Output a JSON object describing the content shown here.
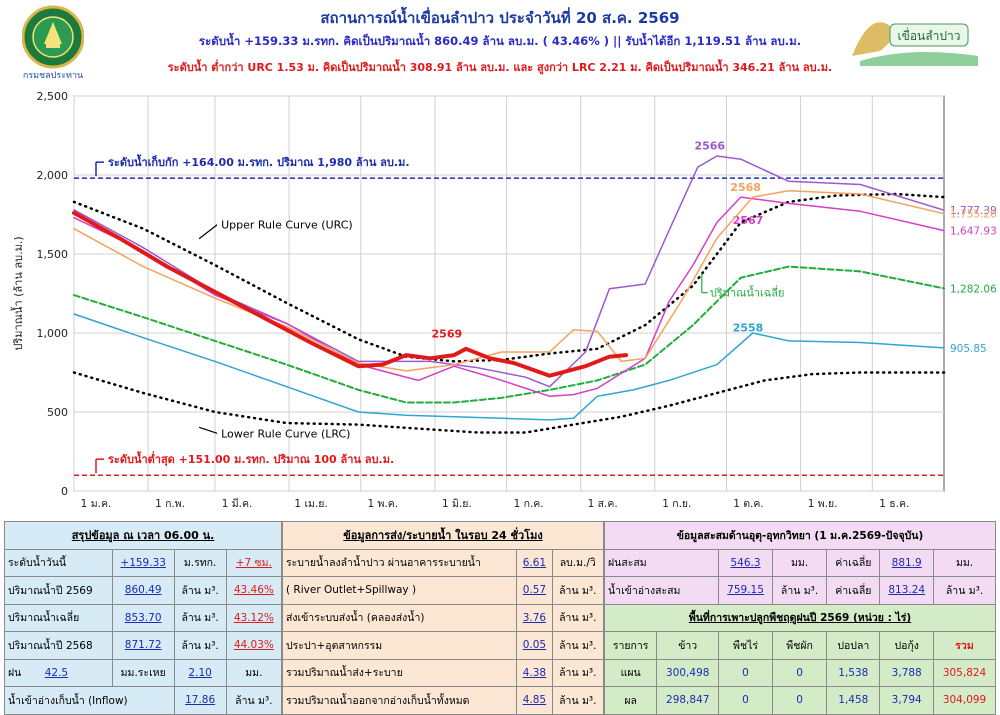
{
  "header": {
    "title": "สถานการณ์น้ำเขื่อนลำปาว ประจำวันที่ 20 ส.ค. 2569",
    "line2": "ระดับน้ำ +159.33 ม.รทก.  คิดเป็นปริมาณน้ำ 860.49 ล้าน ลบ.ม. ( 43.46% )  || รับน้ำได้อีก 1,119.51 ล้าน ลบ.ม.",
    "line3": "ระดับน้ำ ต่ำกว่า URC 1.53 ม. คิดเป็นปริมาณน้ำ 308.91 ล้าน ลบ.ม. และ สูงกว่า LRC 2.21 ม. คิดเป็นปริมาณน้ำ 346.21 ล้าน ลบ.ม.",
    "logo_left_text": "กรมชลประทาน",
    "logo_right_text": "เขื่อนลำปาว"
  },
  "chart_data": {
    "type": "line",
    "ylabel": "ปริมาณน้ำ (ล้าน ลบ.ม.)",
    "ylim": [
      0,
      2500
    ],
    "yticks": [
      "0",
      "500",
      "1,000",
      "1,500",
      "2,000",
      "2,500"
    ],
    "month_labels": [
      "1 ม.ค.",
      "1 ก.พ.",
      "1 มี.ค.",
      "1 เม.ย.",
      "1 พ.ค.",
      "1 มิ.ย.",
      "1 ก.ค.",
      "1 ส.ค.",
      "1 ก.ย.",
      "1 ต.ค.",
      "1 พ.ย.",
      "1 ธ.ค."
    ],
    "x_unit": "day of year",
    "reference_lines": [
      {
        "label": "ระดับน้ำเก็บกัก +164.00 ม.รทก. ปริมาณ 1,980 ล้าน ลบ.ม.",
        "value": 1980,
        "color": "#1c2bb0"
      },
      {
        "label": "ระดับน้ำต่ำสุด +151.00 ม.รทก. ปริมาณ 100 ล้าน ลบ.ม.",
        "value": 100,
        "color": "#e01a1a"
      }
    ],
    "series": [
      {
        "name": "Upper Rule Curve (URC)",
        "color": "#000000",
        "style": "dotted",
        "width": 2.5,
        "x": [
          1,
          30,
          60,
          90,
          120,
          140,
          160,
          180,
          200,
          220,
          240,
          260,
          280,
          300,
          320,
          345,
          365
        ],
        "y": [
          1830,
          1660,
          1430,
          1190,
          960,
          850,
          820,
          830,
          870,
          900,
          1050,
          1300,
          1700,
          1830,
          1870,
          1880,
          1860
        ]
      },
      {
        "name": "Lower Rule Curve (LRC)",
        "color": "#000000",
        "style": "dotted",
        "width": 2.5,
        "x": [
          1,
          30,
          60,
          90,
          120,
          150,
          170,
          190,
          210,
          230,
          250,
          270,
          290,
          310,
          330,
          365
        ],
        "y": [
          750,
          620,
          500,
          430,
          420,
          390,
          370,
          370,
          420,
          470,
          540,
          620,
          700,
          740,
          750,
          750
        ]
      },
      {
        "name": "ปริมาณน้ำเฉลี่ย",
        "color": "#1fae3e",
        "style": "dashed",
        "width": 2,
        "x": [
          1,
          30,
          60,
          90,
          120,
          140,
          160,
          180,
          200,
          220,
          240,
          260,
          280,
          300,
          330,
          365
        ],
        "y": [
          1240,
          1100,
          950,
          800,
          640,
          560,
          560,
          590,
          640,
          700,
          800,
          1050,
          1350,
          1420,
          1390,
          1282
        ],
        "end_label": "1,282.06"
      },
      {
        "name": "2558",
        "color": "#2fa6cf",
        "style": "solid",
        "width": 1.5,
        "x": [
          1,
          30,
          60,
          90,
          120,
          140,
          160,
          180,
          200,
          210,
          220,
          235,
          250,
          270,
          285,
          300,
          330,
          365
        ],
        "y": [
          1120,
          970,
          820,
          660,
          500,
          480,
          470,
          460,
          450,
          460,
          600,
          640,
          700,
          800,
          1000,
          950,
          940,
          906
        ],
        "end_label": "905.85"
      },
      {
        "name": "2566",
        "color": "#9b59d0",
        "style": "solid",
        "width": 1.5,
        "x": [
          1,
          30,
          60,
          90,
          120,
          150,
          170,
          190,
          200,
          215,
          225,
          240,
          250,
          262,
          270,
          280,
          300,
          330,
          365
        ],
        "y": [
          1780,
          1540,
          1260,
          1060,
          820,
          820,
          780,
          720,
          660,
          880,
          1280,
          1310,
          1650,
          2050,
          2120,
          2100,
          1960,
          1940,
          1777
        ],
        "end_label": "1,777.39"
      },
      {
        "name": "2567",
        "color": "#d63ec8",
        "style": "solid",
        "width": 1.5,
        "x": [
          1,
          30,
          60,
          90,
          120,
          145,
          160,
          180,
          200,
          210,
          220,
          240,
          250,
          260,
          270,
          280,
          300,
          330,
          365
        ],
        "y": [
          1730,
          1520,
          1240,
          1060,
          800,
          700,
          790,
          700,
          600,
          610,
          650,
          840,
          1200,
          1430,
          1700,
          1860,
          1820,
          1770,
          1648
        ],
        "end_label": "1,647.93"
      },
      {
        "name": "2568",
        "color": "#f5a25d",
        "style": "solid",
        "width": 1.5,
        "x": [
          1,
          30,
          60,
          90,
          120,
          140,
          160,
          180,
          200,
          210,
          220,
          230,
          240,
          255,
          270,
          285,
          300,
          330,
          365
        ],
        "y": [
          1660,
          1420,
          1220,
          1040,
          810,
          760,
          800,
          880,
          880,
          1020,
          1010,
          820,
          840,
          1200,
          1600,
          1860,
          1900,
          1880,
          1755
        ],
        "end_label": "1,755.20"
      },
      {
        "name": "2569",
        "color": "#e01a1a",
        "style": "solid",
        "width": 4,
        "x": [
          1,
          20,
          40,
          60,
          80,
          100,
          120,
          130,
          140,
          150,
          160,
          165,
          175,
          185,
          200,
          215,
          225,
          232
        ],
        "y": [
          1760,
          1600,
          1420,
          1260,
          1100,
          940,
          790,
          800,
          860,
          840,
          860,
          900,
          840,
          810,
          730,
          790,
          850,
          860
        ]
      }
    ],
    "series_labels": [
      "Upper Rule Curve (URC)",
      "Lower Rule Curve (LRC)",
      "ปริมาณน้ำเฉลี่ย",
      "2558",
      "2566",
      "2567",
      "2568",
      "2569"
    ]
  },
  "summary": {
    "title": "สรุปข้อมูล ณ เวลา 06.00 น.",
    "rows": [
      [
        "ระดับน้ำวันนี้",
        "+159.33",
        "ม.รทก.",
        "+7 ซม."
      ],
      [
        "ปริมาณน้ำปี 2569",
        "860.49",
        "ล้าน ม³.",
        "43.46%"
      ],
      [
        "ปริมาณน้ำเฉลี่ย",
        "853.70",
        "ล้าน ม³.",
        "43.12%"
      ],
      [
        "ปริมาณน้ำปี 2568",
        "871.72",
        "ล้าน ม³.",
        "44.03%"
      ],
      [
        "ฝน",
        "42.5",
        "มม.ระเหย",
        "2.10",
        "มม."
      ],
      [
        "น้ำเข้าอ่างเก็บน้ำ (Inflow)",
        "17.86",
        "ล้าน ม³."
      ]
    ]
  },
  "release": {
    "title": "ข้อมูลการส่ง/ระบายน้ำ ในรอบ 24 ชั่วโมง",
    "rows": [
      [
        "ระบายน้ำลงลำน้ำปาว ผ่านอาคารระบายน้ำ",
        "6.61",
        "ลบ.ม./วิ"
      ],
      [
        "( River Outlet+Spillway )",
        "0.57",
        "ล้าน ม³."
      ],
      [
        "ส่งเข้าระบบส่งน้ำ (คลองส่งน้ำ)",
        "3.76",
        "ล้าน ม³."
      ],
      [
        "ประปา+อุตสาหกรรม",
        "0.05",
        "ล้าน ม³."
      ],
      [
        "รวมปริมาณน้ำส่ง+ระบาย",
        "4.38",
        "ล้าน ม³."
      ],
      [
        "รวมปริมาณน้ำออกจากอ่างเก็บน้ำทั้งหมด",
        "4.85",
        "ล้าน ม³."
      ]
    ]
  },
  "hydro": {
    "title": "ข้อมูลสะสมด้านอุตุ-อุทกวิทยา (1 ม.ค.2569-ปัจจุบัน)",
    "rows": [
      [
        "ฝนสะสม",
        "546.3",
        "มม.",
        "ค่าเฉลี่ย",
        "881.9",
        "มม."
      ],
      [
        "น้ำเข้าอ่างสะสม",
        "759.15",
        "ล้าน ม³.",
        "ค่าเฉลี่ย",
        "813.24",
        "ล้าน ม³."
      ]
    ]
  },
  "crops": {
    "title": "พื้นที่การเพาะปลูกพืชฤดูฝนปี 2569 (หน่วย : ไร่)",
    "headers": [
      "รายการ",
      "ข้าว",
      "พืชไร่",
      "พืชผัก",
      "ปอปลา",
      "ปอกุ้ง",
      "รวม"
    ],
    "rows": [
      [
        "แผน",
        "300,498",
        "0",
        "0",
        "1,538",
        "3,788",
        "305,824"
      ],
      [
        "ผล",
        "298,847",
        "0",
        "0",
        "1,458",
        "3,794",
        "304,099"
      ]
    ]
  }
}
